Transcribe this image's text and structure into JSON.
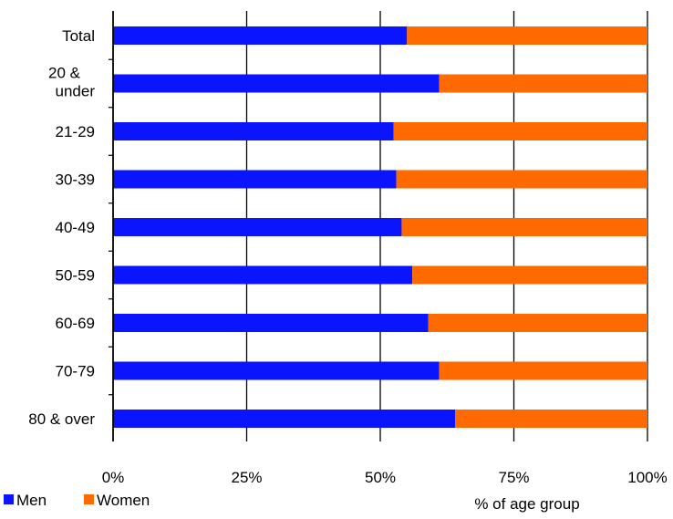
{
  "chart_data": {
    "type": "bar",
    "orientation": "horizontal",
    "stacked": true,
    "categories": [
      "Total",
      "20 &\nunder",
      "21-29",
      "30-39",
      "40-49",
      "50-59",
      "60-69",
      "70-79",
      "80 & over"
    ],
    "series": [
      {
        "name": "Men",
        "color": "#0a14ff",
        "values": [
          55,
          61,
          52.5,
          53,
          54,
          56,
          59,
          61,
          64
        ]
      },
      {
        "name": "Women",
        "color": "#ff6a00",
        "values": [
          45,
          39,
          47.5,
          47,
          46,
          44,
          41,
          39,
          36
        ]
      }
    ],
    "xlim": [
      0,
      100
    ],
    "x_ticks": [
      "0%",
      "25%",
      "50%",
      "75%",
      "100%"
    ],
    "xlabel": "% of age group",
    "title": "",
    "grid": "vertical",
    "legend_position": "bottom-left"
  }
}
